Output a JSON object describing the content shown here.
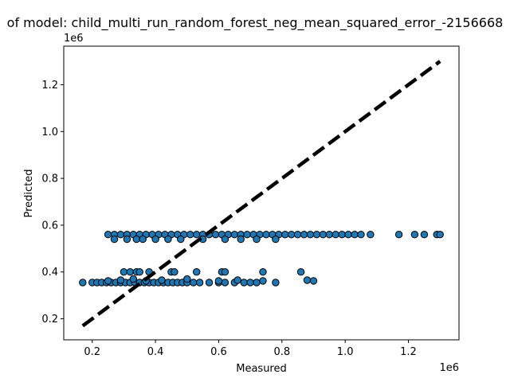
{
  "chart_data": {
    "type": "scatter",
    "title": "of model: child_multi_run_random_forest_neg_mean_squared_error_-2156668",
    "xlabel": "Measured",
    "ylabel": "Predicted",
    "x_offset_label": "1e6",
    "y_offset_label": "1e6",
    "xlim": [
      0.11,
      1.36
    ],
    "ylim": [
      0.11,
      1.365
    ],
    "xticks": [
      0.2,
      0.4,
      0.6,
      0.8,
      1.0,
      1.2
    ],
    "xtick_labels": [
      "0.2",
      "0.4",
      "0.6",
      "0.8",
      "1.0",
      "1.2"
    ],
    "yticks": [
      0.2,
      0.4,
      0.6,
      0.8,
      1.0,
      1.2
    ],
    "ytick_labels": [
      "0.2",
      "0.4",
      "0.6",
      "0.8",
      "1.0",
      "1.2"
    ],
    "grid": false,
    "point_color": "#1f77b4",
    "point_edge_color": "#000000",
    "reference_line": {
      "style": "dashed",
      "color": "#000000",
      "x": [
        0.17,
        1.3
      ],
      "y": [
        0.17,
        1.3
      ]
    },
    "points": [
      [
        0.17,
        0.355
      ],
      [
        0.2,
        0.355
      ],
      [
        0.215,
        0.355
      ],
      [
        0.23,
        0.355
      ],
      [
        0.245,
        0.355
      ],
      [
        0.26,
        0.355
      ],
      [
        0.275,
        0.355
      ],
      [
        0.29,
        0.355
      ],
      [
        0.305,
        0.355
      ],
      [
        0.32,
        0.355
      ],
      [
        0.335,
        0.355
      ],
      [
        0.35,
        0.355
      ],
      [
        0.365,
        0.355
      ],
      [
        0.38,
        0.355
      ],
      [
        0.395,
        0.355
      ],
      [
        0.41,
        0.355
      ],
      [
        0.425,
        0.355
      ],
      [
        0.44,
        0.355
      ],
      [
        0.455,
        0.355
      ],
      [
        0.47,
        0.355
      ],
      [
        0.485,
        0.355
      ],
      [
        0.5,
        0.355
      ],
      [
        0.52,
        0.355
      ],
      [
        0.54,
        0.355
      ],
      [
        0.57,
        0.355
      ],
      [
        0.6,
        0.355
      ],
      [
        0.62,
        0.355
      ],
      [
        0.65,
        0.355
      ],
      [
        0.68,
        0.355
      ],
      [
        0.7,
        0.355
      ],
      [
        0.72,
        0.355
      ],
      [
        0.78,
        0.355
      ],
      [
        0.25,
        0.362
      ],
      [
        0.29,
        0.365
      ],
      [
        0.33,
        0.37
      ],
      [
        0.37,
        0.362
      ],
      [
        0.42,
        0.365
      ],
      [
        0.5,
        0.37
      ],
      [
        0.6,
        0.362
      ],
      [
        0.66,
        0.365
      ],
      [
        0.74,
        0.362
      ],
      [
        0.88,
        0.365
      ],
      [
        0.9,
        0.362
      ],
      [
        0.3,
        0.4
      ],
      [
        0.32,
        0.4
      ],
      [
        0.34,
        0.4
      ],
      [
        0.35,
        0.4
      ],
      [
        0.38,
        0.4
      ],
      [
        0.45,
        0.4
      ],
      [
        0.46,
        0.4
      ],
      [
        0.53,
        0.4
      ],
      [
        0.61,
        0.4
      ],
      [
        0.62,
        0.4
      ],
      [
        0.74,
        0.4
      ],
      [
        0.86,
        0.4
      ],
      [
        0.25,
        0.56
      ],
      [
        0.27,
        0.56
      ],
      [
        0.29,
        0.56
      ],
      [
        0.31,
        0.56
      ],
      [
        0.33,
        0.56
      ],
      [
        0.35,
        0.56
      ],
      [
        0.37,
        0.56
      ],
      [
        0.39,
        0.56
      ],
      [
        0.41,
        0.56
      ],
      [
        0.43,
        0.56
      ],
      [
        0.45,
        0.56
      ],
      [
        0.47,
        0.56
      ],
      [
        0.49,
        0.56
      ],
      [
        0.51,
        0.56
      ],
      [
        0.53,
        0.56
      ],
      [
        0.55,
        0.56
      ],
      [
        0.57,
        0.56
      ],
      [
        0.59,
        0.56
      ],
      [
        0.61,
        0.56
      ],
      [
        0.63,
        0.56
      ],
      [
        0.65,
        0.56
      ],
      [
        0.67,
        0.56
      ],
      [
        0.69,
        0.56
      ],
      [
        0.71,
        0.56
      ],
      [
        0.73,
        0.56
      ],
      [
        0.75,
        0.56
      ],
      [
        0.77,
        0.56
      ],
      [
        0.79,
        0.56
      ],
      [
        0.81,
        0.56
      ],
      [
        0.83,
        0.56
      ],
      [
        0.85,
        0.56
      ],
      [
        0.87,
        0.56
      ],
      [
        0.89,
        0.56
      ],
      [
        0.91,
        0.56
      ],
      [
        0.93,
        0.56
      ],
      [
        0.95,
        0.56
      ],
      [
        0.97,
        0.56
      ],
      [
        0.99,
        0.56
      ],
      [
        1.01,
        0.56
      ],
      [
        1.03,
        0.56
      ],
      [
        1.05,
        0.56
      ],
      [
        1.08,
        0.56
      ],
      [
        1.17,
        0.56
      ],
      [
        1.22,
        0.56
      ],
      [
        1.25,
        0.56
      ],
      [
        1.29,
        0.56
      ],
      [
        1.3,
        0.56
      ],
      [
        0.27,
        0.54
      ],
      [
        0.31,
        0.54
      ],
      [
        0.34,
        0.54
      ],
      [
        0.36,
        0.54
      ],
      [
        0.4,
        0.54
      ],
      [
        0.44,
        0.54
      ],
      [
        0.48,
        0.54
      ],
      [
        0.55,
        0.54
      ],
      [
        0.62,
        0.54
      ],
      [
        0.67,
        0.54
      ],
      [
        0.72,
        0.54
      ],
      [
        0.78,
        0.54
      ]
    ]
  }
}
